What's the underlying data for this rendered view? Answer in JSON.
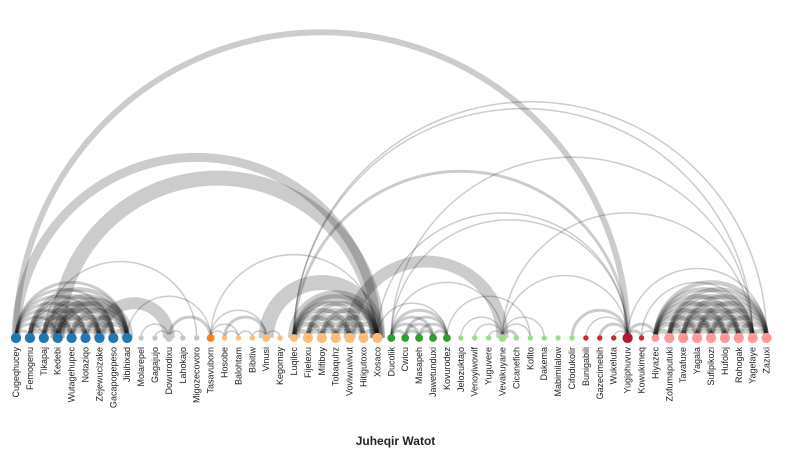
{
  "title": "Juheqir Watot",
  "colors": {
    "blue": "#1f77b4",
    "gray": "#c7c7c7",
    "orange": "#ffbb78",
    "dark_orange": "#ff7f0e",
    "green": "#2ca02c",
    "light_green": "#98df8a",
    "red": "#d62728",
    "dark_red": "#b2182b",
    "pink": "#ff9896",
    "link": "#000000"
  },
  "nodes": [
    {
      "name": "Cugeqhucey",
      "group": "blue",
      "size": 3
    },
    {
      "name": "Femogenu",
      "group": "blue",
      "size": 3
    },
    {
      "name": "Tikapaj",
      "group": "blue",
      "size": 3
    },
    {
      "name": "Kedebi",
      "group": "blue",
      "size": 3
    },
    {
      "name": "Wutagehupec",
      "group": "blue",
      "size": 3
    },
    {
      "name": "Notaziqo",
      "group": "blue",
      "size": 3
    },
    {
      "name": "Zejewucizake",
      "group": "blue",
      "size": 3
    },
    {
      "name": "Gacapogepeso",
      "group": "blue",
      "size": 3
    },
    {
      "name": "Jibihixad",
      "group": "blue",
      "size": 3
    },
    {
      "name": "Molarepel",
      "group": "gray",
      "size": 1
    },
    {
      "name": "Gagajujo",
      "group": "gray",
      "size": 1
    },
    {
      "name": "Dowurodixu",
      "group": "gray",
      "size": 2
    },
    {
      "name": "Lahokajo",
      "group": "gray",
      "size": 1
    },
    {
      "name": "Migozecovoro",
      "group": "gray",
      "size": 1
    },
    {
      "name": "Tasavuborn",
      "group": "dark_orange",
      "size": 2
    },
    {
      "name": "Hosobe",
      "group": "orange",
      "size": 1
    },
    {
      "name": "Balohtam",
      "group": "orange",
      "size": 1
    },
    {
      "name": "Bibitiw",
      "group": "orange",
      "size": 1
    },
    {
      "name": "Vinusi",
      "group": "orange",
      "size": 2
    },
    {
      "name": "Kegomay",
      "group": "orange",
      "size": 1
    },
    {
      "name": "Luqilec",
      "group": "orange",
      "size": 2
    },
    {
      "name": "Fijelexu",
      "group": "orange",
      "size": 3
    },
    {
      "name": "Mifiboy",
      "group": "orange",
      "size": 3
    },
    {
      "name": "Tobaquhz",
      "group": "orange",
      "size": 3
    },
    {
      "name": "Voviwuwivut",
      "group": "orange",
      "size": 3
    },
    {
      "name": "Hitigutoxo",
      "group": "orange",
      "size": 3
    },
    {
      "name": "Xosaco",
      "group": "orange",
      "size": 3
    },
    {
      "name": "Ducolik",
      "group": "green",
      "size": 2
    },
    {
      "name": "Cwicu",
      "group": "green",
      "size": 2
    },
    {
      "name": "Masapeh",
      "group": "green",
      "size": 2
    },
    {
      "name": "Jawetunduxi",
      "group": "green",
      "size": 2
    },
    {
      "name": "Kovurodez",
      "group": "green",
      "size": 2
    },
    {
      "name": "Jelozuktajo",
      "group": "light_green",
      "size": 1
    },
    {
      "name": "Venoyiwowif",
      "group": "light_green",
      "size": 1
    },
    {
      "name": "Yuguvere",
      "group": "light_green",
      "size": 1
    },
    {
      "name": "Vevakuyane",
      "group": "light_green",
      "size": 2
    },
    {
      "name": "Cicanefich",
      "group": "light_green",
      "size": 1
    },
    {
      "name": "Kofito",
      "group": "light_green",
      "size": 1
    },
    {
      "name": "Dakema",
      "group": "light_green",
      "size": 1
    },
    {
      "name": "Mabimilalow",
      "group": "light_green",
      "size": 1
    },
    {
      "name": "Cifodukolir",
      "group": "light_green",
      "size": 1
    },
    {
      "name": "Bunigabili",
      "group": "red",
      "size": 1
    },
    {
      "name": "Gazecimebih",
      "group": "red",
      "size": 1
    },
    {
      "name": "Wukeluta",
      "group": "red",
      "size": 1
    },
    {
      "name": "Yugiphuvuv",
      "group": "dark_red",
      "size": 3
    },
    {
      "name": "Kowukimeq",
      "group": "red",
      "size": 1
    },
    {
      "name": "Hiyazec",
      "group": "pink",
      "size": 2
    },
    {
      "name": "Zofumaputuki",
      "group": "pink",
      "size": 3
    },
    {
      "name": "Tavafuxe",
      "group": "pink",
      "size": 3
    },
    {
      "name": "Yagala",
      "group": "pink",
      "size": 3
    },
    {
      "name": "Sufipikozi",
      "group": "pink",
      "size": 3
    },
    {
      "name": "Hufoloj",
      "group": "pink",
      "size": 3
    },
    {
      "name": "Rohogak",
      "group": "pink",
      "size": 3
    },
    {
      "name": "Yagelaye",
      "group": "pink",
      "size": 3
    },
    {
      "name": "Zazuxi",
      "group": "pink",
      "size": 3
    }
  ],
  "links": [
    [
      0,
      1,
      2
    ],
    [
      0,
      2,
      2
    ],
    [
      0,
      3,
      2
    ],
    [
      0,
      4,
      2
    ],
    [
      0,
      5,
      2
    ],
    [
      0,
      6,
      2
    ],
    [
      0,
      7,
      2
    ],
    [
      0,
      8,
      2
    ],
    [
      1,
      2,
      3
    ],
    [
      1,
      3,
      3
    ],
    [
      1,
      4,
      3
    ],
    [
      1,
      5,
      3
    ],
    [
      1,
      6,
      3
    ],
    [
      1,
      7,
      3
    ],
    [
      1,
      8,
      3
    ],
    [
      2,
      3,
      3
    ],
    [
      2,
      4,
      3
    ],
    [
      2,
      5,
      3
    ],
    [
      2,
      6,
      3
    ],
    [
      2,
      7,
      3
    ],
    [
      2,
      8,
      3
    ],
    [
      3,
      4,
      3
    ],
    [
      3,
      5,
      3
    ],
    [
      3,
      6,
      3
    ],
    [
      3,
      7,
      3
    ],
    [
      3,
      8,
      3
    ],
    [
      4,
      5,
      3
    ],
    [
      4,
      6,
      3
    ],
    [
      4,
      7,
      3
    ],
    [
      4,
      8,
      3
    ],
    [
      5,
      6,
      3
    ],
    [
      5,
      7,
      3
    ],
    [
      5,
      8,
      3
    ],
    [
      6,
      7,
      3
    ],
    [
      6,
      8,
      3
    ],
    [
      7,
      8,
      3
    ],
    [
      3,
      8,
      8
    ],
    [
      6,
      11,
      8
    ],
    [
      0,
      26,
      6
    ],
    [
      0,
      44,
      4
    ],
    [
      3,
      26,
      10
    ],
    [
      2,
      13,
      1
    ],
    [
      8,
      14,
      1
    ],
    [
      9,
      11,
      1
    ],
    [
      10,
      11,
      1
    ],
    [
      11,
      12,
      1
    ],
    [
      11,
      14,
      2
    ],
    [
      14,
      15,
      1
    ],
    [
      14,
      16,
      1
    ],
    [
      14,
      18,
      1
    ],
    [
      15,
      16,
      1
    ],
    [
      16,
      17,
      1
    ],
    [
      17,
      18,
      1
    ],
    [
      18,
      19,
      1
    ],
    [
      15,
      18,
      2
    ],
    [
      14,
      26,
      1
    ],
    [
      20,
      21,
      3
    ],
    [
      20,
      22,
      3
    ],
    [
      20,
      23,
      3
    ],
    [
      20,
      24,
      3
    ],
    [
      20,
      25,
      3
    ],
    [
      20,
      26,
      3
    ],
    [
      21,
      22,
      3
    ],
    [
      21,
      23,
      3
    ],
    [
      21,
      24,
      3
    ],
    [
      21,
      25,
      3
    ],
    [
      21,
      26,
      3
    ],
    [
      22,
      23,
      3
    ],
    [
      22,
      24,
      3
    ],
    [
      22,
      25,
      3
    ],
    [
      22,
      26,
      3
    ],
    [
      23,
      24,
      3
    ],
    [
      23,
      25,
      3
    ],
    [
      23,
      26,
      3
    ],
    [
      24,
      25,
      3
    ],
    [
      24,
      26,
      3
    ],
    [
      25,
      26,
      3
    ],
    [
      20,
      26,
      8
    ],
    [
      18,
      26,
      10
    ],
    [
      24,
      35,
      8
    ],
    [
      20,
      44,
      2
    ],
    [
      20,
      54,
      1
    ],
    [
      26,
      44,
      1
    ],
    [
      27,
      44,
      1
    ],
    [
      27,
      28,
      2
    ],
    [
      27,
      29,
      2
    ],
    [
      27,
      30,
      2
    ],
    [
      27,
      31,
      2
    ],
    [
      28,
      29,
      2
    ],
    [
      28,
      30,
      2
    ],
    [
      28,
      31,
      2
    ],
    [
      29,
      30,
      2
    ],
    [
      29,
      31,
      2
    ],
    [
      30,
      31,
      2
    ],
    [
      27,
      35,
      1
    ],
    [
      27,
      53,
      1
    ],
    [
      31,
      37,
      1
    ],
    [
      26,
      31,
      1
    ],
    [
      33,
      35,
      1
    ],
    [
      34,
      35,
      1
    ],
    [
      35,
      36,
      2
    ],
    [
      35,
      37,
      1
    ],
    [
      35,
      38,
      1
    ],
    [
      32,
      35,
      1
    ],
    [
      44,
      45,
      2
    ],
    [
      40,
      44,
      2
    ],
    [
      42,
      44,
      2
    ],
    [
      43,
      44,
      1
    ],
    [
      44,
      46,
      2
    ],
    [
      41,
      44,
      1
    ],
    [
      35,
      44,
      1
    ],
    [
      46,
      47,
      3
    ],
    [
      46,
      48,
      3
    ],
    [
      46,
      49,
      3
    ],
    [
      46,
      50,
      3
    ],
    [
      46,
      51,
      3
    ],
    [
      46,
      52,
      3
    ],
    [
      46,
      53,
      3
    ],
    [
      46,
      54,
      3
    ],
    [
      47,
      48,
      3
    ],
    [
      47,
      49,
      3
    ],
    [
      47,
      50,
      3
    ],
    [
      47,
      51,
      3
    ],
    [
      47,
      52,
      3
    ],
    [
      47,
      53,
      3
    ],
    [
      47,
      54,
      3
    ],
    [
      48,
      49,
      3
    ],
    [
      48,
      50,
      3
    ],
    [
      48,
      51,
      3
    ],
    [
      48,
      52,
      3
    ],
    [
      48,
      53,
      3
    ],
    [
      48,
      54,
      3
    ],
    [
      49,
      50,
      3
    ],
    [
      49,
      51,
      3
    ],
    [
      49,
      52,
      3
    ],
    [
      49,
      53,
      3
    ],
    [
      49,
      54,
      3
    ],
    [
      50,
      51,
      3
    ],
    [
      50,
      52,
      3
    ],
    [
      50,
      53,
      3
    ],
    [
      50,
      54,
      3
    ],
    [
      51,
      52,
      3
    ],
    [
      51,
      53,
      3
    ],
    [
      51,
      54,
      3
    ],
    [
      52,
      53,
      3
    ],
    [
      52,
      54,
      3
    ],
    [
      53,
      54,
      3
    ],
    [
      44,
      54,
      1
    ],
    [
      45,
      53,
      1
    ],
    [
      35,
      53,
      1
    ],
    [
      20,
      53,
      1
    ],
    [
      45,
      46,
      1
    ]
  ]
}
